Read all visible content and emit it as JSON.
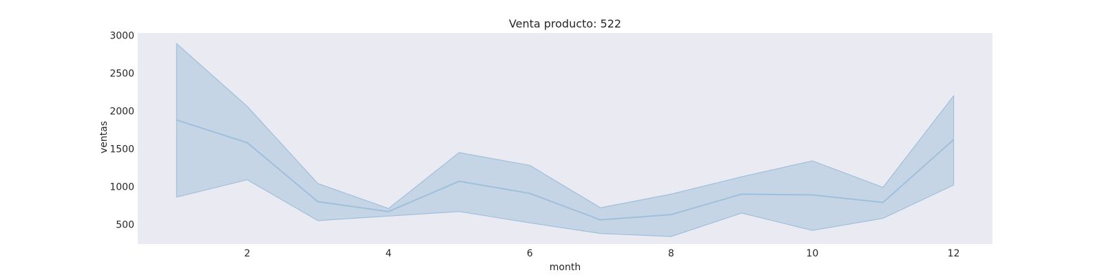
{
  "chart_data": {
    "type": "line",
    "title": "Venta producto: 522",
    "xlabel": "month",
    "ylabel": "ventas",
    "x": [
      1,
      2,
      3,
      4,
      5,
      6,
      7,
      8,
      9,
      10,
      11,
      12
    ],
    "series": [
      {
        "values": [
          1880,
          1580,
          800,
          670,
          1070,
          910,
          560,
          630,
          900,
          890,
          790,
          1620
        ],
        "lower": [
          860,
          1090,
          550,
          610,
          670,
          520,
          380,
          340,
          650,
          420,
          580,
          1020
        ],
        "upper": [
          2890,
          2060,
          1040,
          710,
          1450,
          1280,
          720,
          900,
          1130,
          1340,
          990,
          2200
        ]
      }
    ],
    "xticks": [
      2,
      4,
      6,
      8,
      10,
      12
    ],
    "yticks": [
      500,
      1000,
      1500,
      2000,
      2500,
      3000
    ],
    "xlim": [
      0.45,
      12.55
    ],
    "ylim": [
      240,
      3030
    ],
    "grid": false,
    "colors": {
      "plot_background": "#eaeaf2",
      "line": "#9fbfdb",
      "band": "#b8cde2"
    }
  }
}
